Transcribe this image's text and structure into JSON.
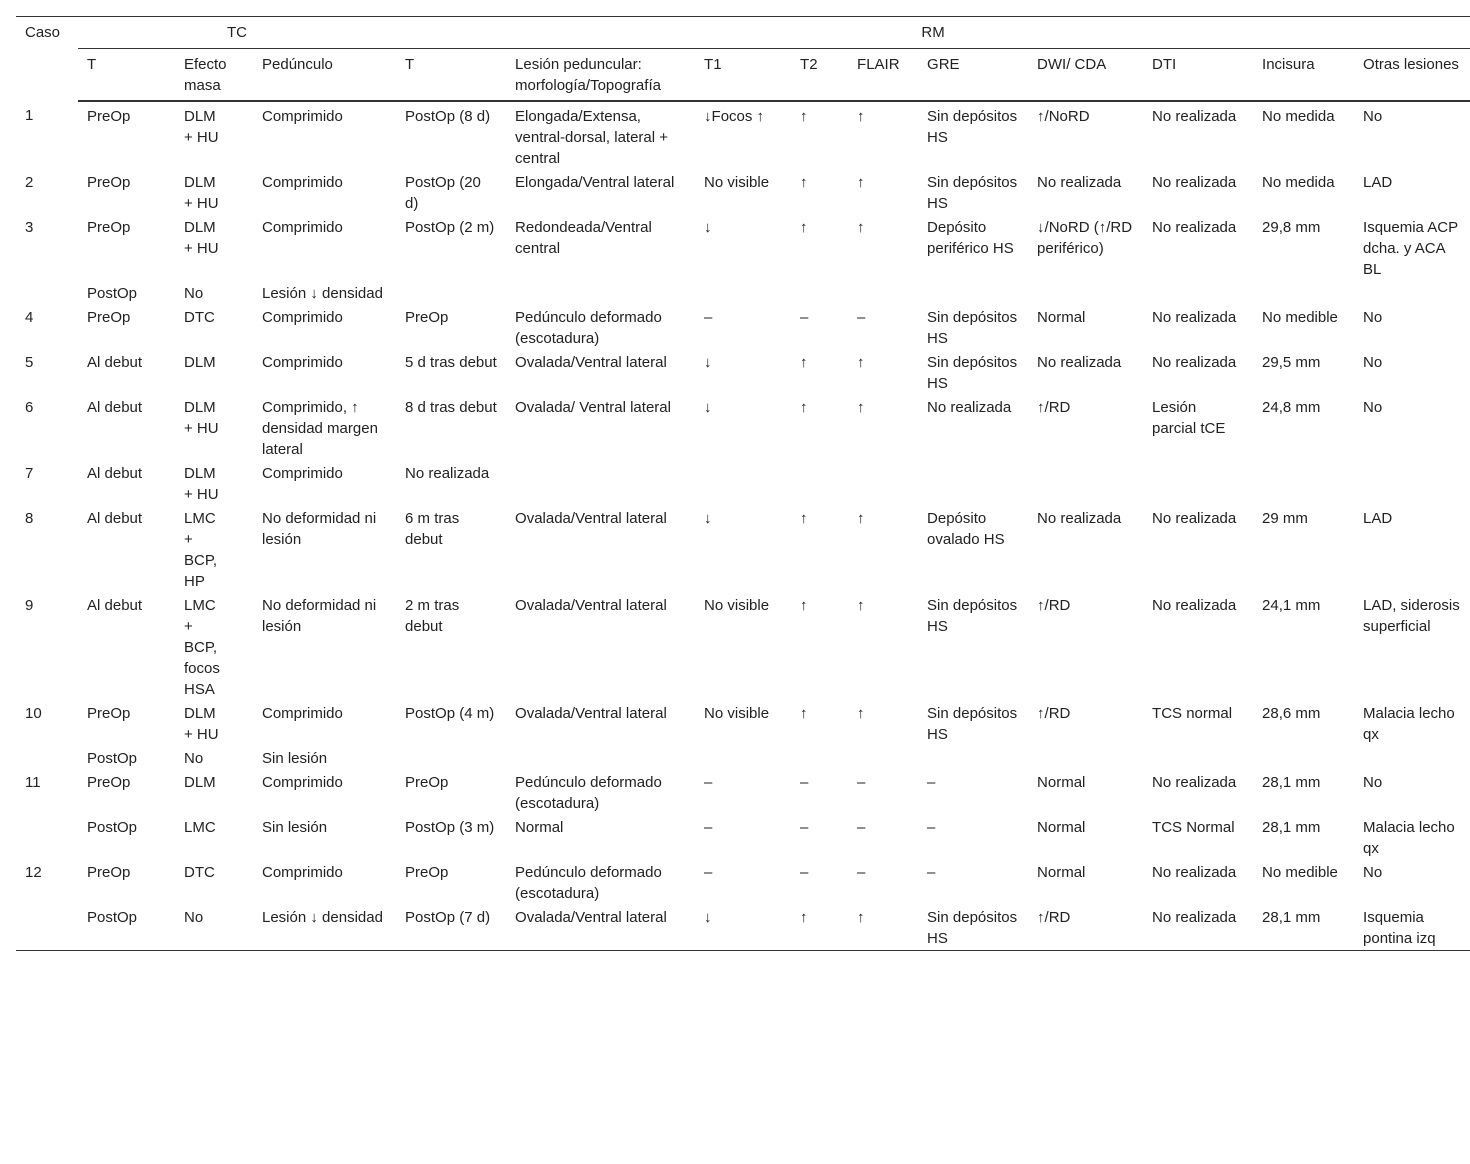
{
  "table": {
    "groups": [
      "Caso",
      "TC",
      "RM"
    ],
    "columns": [
      "T",
      "Efecto masa",
      "Pedúnculo",
      "T",
      "Lesión peduncular: morfología/Topografía",
      "T1",
      "T2",
      "FLAIR",
      "GRE",
      "DWI/ CDA",
      "DTI",
      "Incisura",
      "Otras lesiones"
    ],
    "rows": [
      [
        "1",
        "PreOp",
        "DLM + HU",
        "Comprimido",
        "PostOp (8 d)",
        "Elongada/Extensa, ventral-dorsal, lateral + central",
        "↓Focos ↑",
        "↑",
        "↑",
        "Sin depósitos HS",
        "↑/NoRD",
        "No realizada",
        "No medida",
        "No"
      ],
      [
        "2",
        "PreOp",
        "DLM + HU",
        "Comprimido",
        "PostOp (20 d)",
        "Elongada/Ventral lateral",
        "No visible",
        "↑",
        "↑",
        "Sin depósitos HS",
        "No realizada",
        "No realizada",
        "No medida",
        "LAD"
      ],
      [
        "3",
        "PreOp",
        "DLM + HU",
        "Comprimido",
        "PostOp (2 m)",
        "Redondeada/Ventral central",
        "↓",
        "↑",
        "↑",
        "Depósito periférico HS",
        "↓/NoRD (↑/RD periférico)",
        "No realizada",
        "29,8 mm",
        "Isquemia ACP dcha. y ACA BL"
      ],
      [
        null,
        "PostOp",
        "No",
        "Lesión ↓ densidad",
        null,
        null,
        null,
        null,
        null,
        null,
        null,
        null,
        null,
        null
      ],
      [
        "4",
        "PreOp",
        "DTC",
        "Comprimido",
        "PreOp",
        "Pedúnculo deformado (escotadura)",
        "–",
        "–",
        "–",
        "Sin depósitos HS",
        "Normal",
        "No realizada",
        "No medible",
        "No"
      ],
      [
        "5",
        "Al debut",
        "DLM",
        "Comprimido",
        "5 d tras debut",
        "Ovalada/Ventral lateral",
        "↓",
        "↑",
        "↑",
        "Sin depósitos HS",
        "No realizada",
        "No realizada",
        "29,5 mm",
        "No"
      ],
      [
        "6",
        "Al debut",
        "DLM + HU",
        "Comprimido, ↑ densidad margen lateral",
        "8 d tras debut",
        "Ovalada/ Ventral lateral",
        "↓",
        "↑",
        "↑",
        "No realizada",
        "↑/RD",
        "Lesión parcial tCE",
        "24,8 mm",
        "No"
      ],
      [
        "7",
        "Al debut",
        "DLM + HU",
        "Comprimido",
        "No realizada",
        null,
        null,
        null,
        null,
        null,
        null,
        null,
        null,
        null
      ],
      [
        "8",
        "Al debut",
        "LMC + BCP, HP",
        "No deformidad ni lesión",
        "6 m tras debut",
        "Ovalada/Ventral lateral",
        "↓",
        "↑",
        "↑",
        "Depósito ovalado HS",
        "No realizada",
        "No realizada",
        "29 mm",
        "LAD"
      ],
      [
        "9",
        "Al debut",
        "LMC + BCP, focos HSA",
        "No deformidad ni lesión",
        "2 m tras debut",
        "Ovalada/Ventral lateral",
        "No visible",
        "↑",
        "↑",
        "Sin depósitos HS",
        "↑/RD",
        "No realizada",
        "24,1 mm",
        "LAD, siderosis superficial"
      ],
      [
        "10",
        "PreOp",
        "DLM + HU",
        "Comprimido",
        "PostOp (4 m)",
        "Ovalada/Ventral lateral",
        "No visible",
        "↑",
        "↑",
        "Sin depósitos HS",
        "↑/RD",
        "TCS normal",
        "28,6 mm",
        "Malacia lecho qx"
      ],
      [
        null,
        "PostOp",
        "No",
        "Sin lesión",
        null,
        null,
        null,
        null,
        null,
        null,
        null,
        null,
        null,
        null
      ],
      [
        "11",
        "PreOp",
        "DLM",
        "Comprimido",
        "PreOp",
        "Pedúnculo deformado (escotadura)",
        "–",
        "–",
        "–",
        "–",
        "Normal",
        "No realizada",
        "28,1 mm",
        "No"
      ],
      [
        null,
        "PostOp",
        "LMC",
        "Sin lesión",
        "PostOp (3 m)",
        "Normal",
        "–",
        "–",
        "–",
        "–",
        "Normal",
        "TCS Normal",
        "28,1 mm",
        "Malacia lecho qx"
      ],
      [
        "12",
        "PreOp",
        "DTC",
        "Comprimido",
        "PreOp",
        "Pedúnculo deformado (escotadura)",
        "–",
        "–",
        "–",
        "–",
        "Normal",
        "No realizada",
        "No medible",
        "No"
      ],
      [
        null,
        "PostOp",
        "No",
        "Lesión ↓ densidad",
        "PostOp (7 d)",
        "Ovalada/Ventral lateral",
        "↓",
        "↑",
        "↑",
        "Sin depósitos HS",
        "↑/RD",
        "No realizada",
        "28,1 mm",
        "Isquemia pontina izq"
      ]
    ]
  }
}
